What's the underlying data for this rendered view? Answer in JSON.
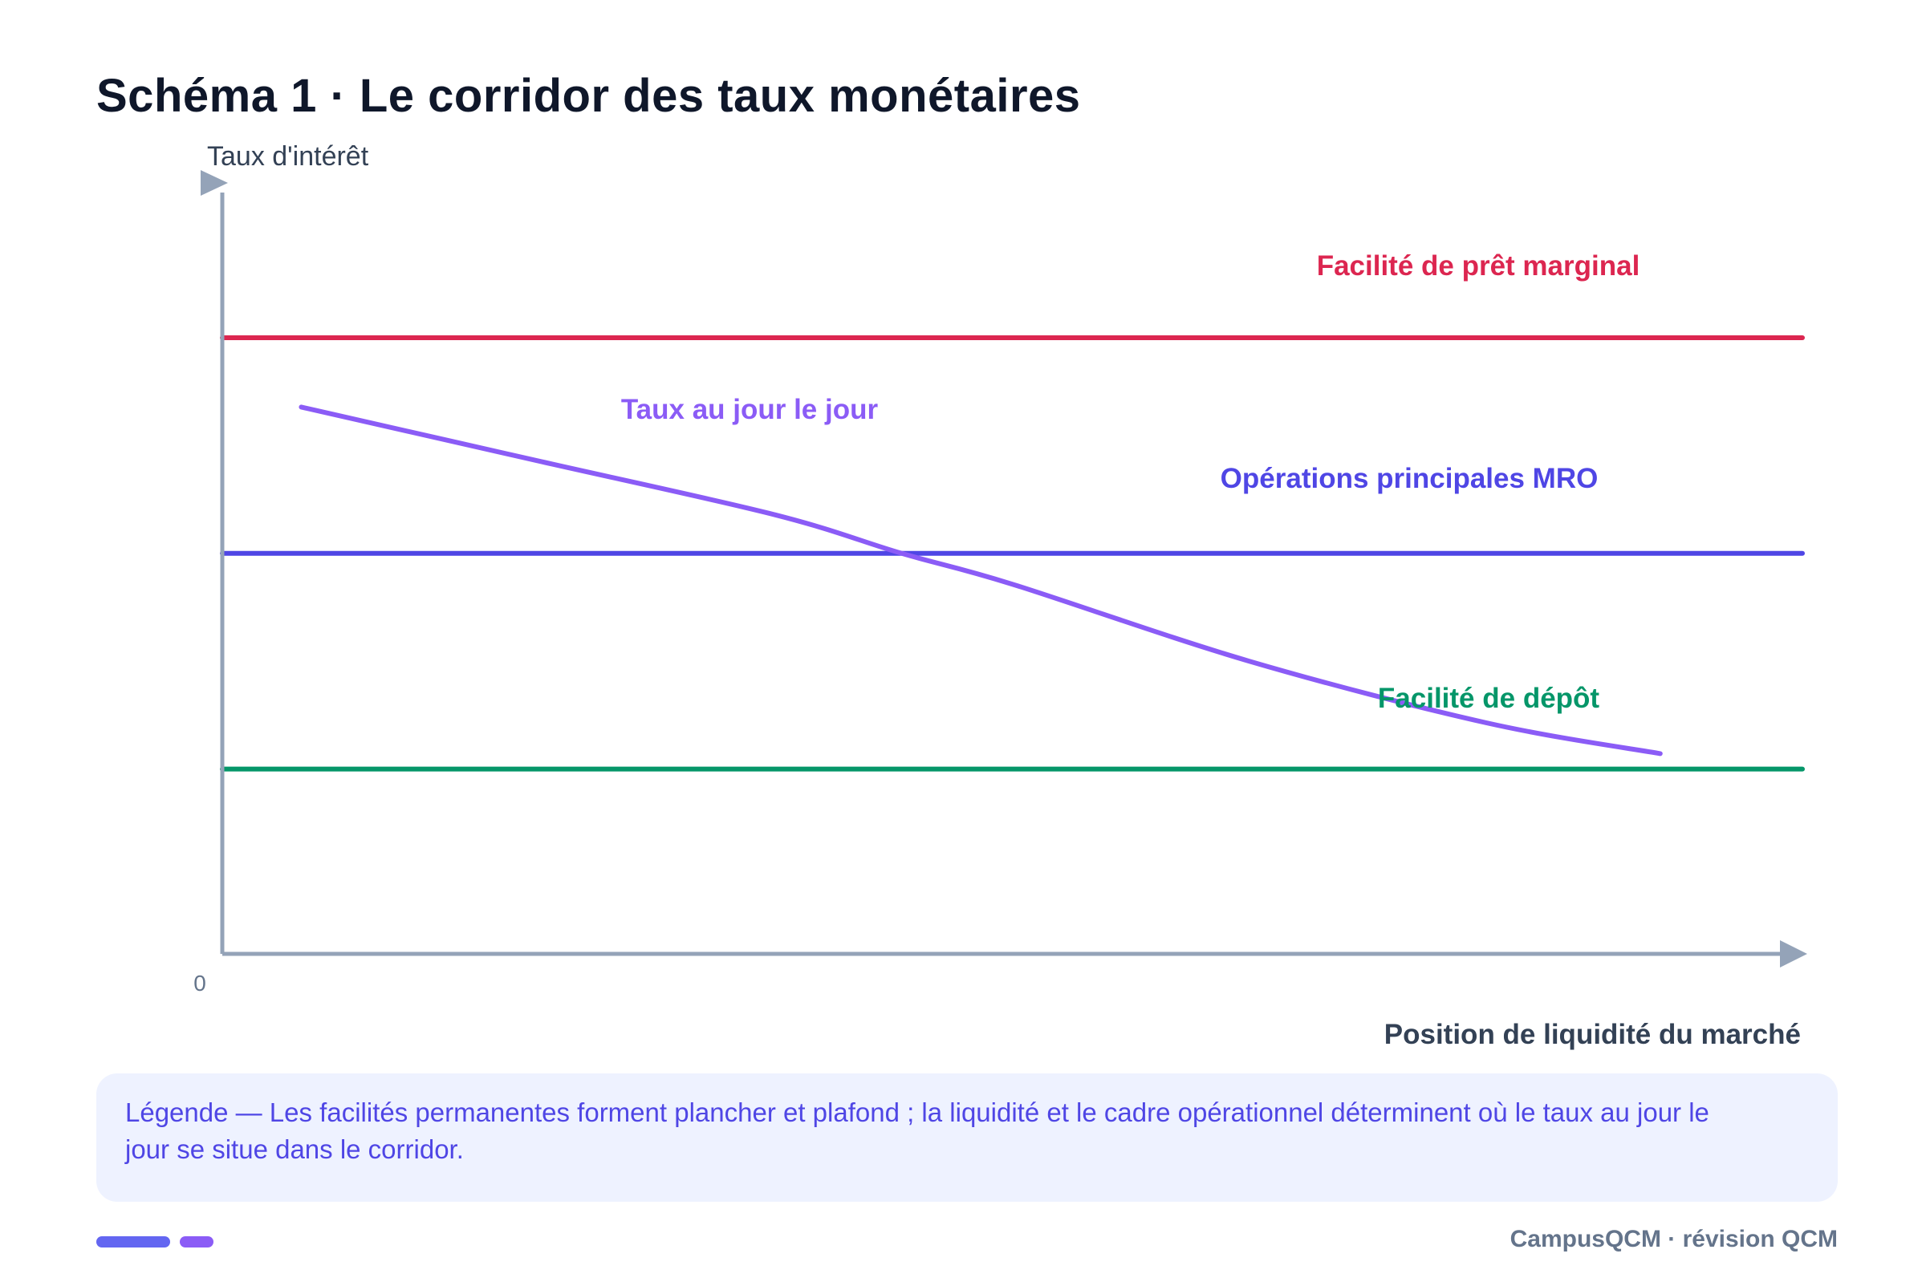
{
  "title": "Schéma 1 · Le corridor des taux monétaires",
  "colors": {
    "axis": "#94a3b8",
    "marginal_lending": "#dc2650",
    "mro": "#4f46e5",
    "deposit": "#059669",
    "overnight": "#8b5cf6",
    "title": "#0f172a",
    "legend_bg": "#eef2ff",
    "footer": "#64748b"
  },
  "chart_data": {
    "type": "line",
    "title": "Schéma 1 · Le corridor des taux monétaires",
    "ylabel": "Taux d'intérêt",
    "xlabel": "Position de liquidité du marché",
    "origin_label": "0",
    "x_ticks": [],
    "y_ticks": [],
    "xlim": [
      0,
      100
    ],
    "ylim": [
      0,
      100
    ],
    "grid": false,
    "series": [
      {
        "name": "Facilité de prêt marginal",
        "kind": "horizontal",
        "color": "#dc2650",
        "y": 80,
        "x": [
          0,
          100
        ]
      },
      {
        "name": "Opérations principales MRO",
        "kind": "horizontal",
        "color": "#4f46e5",
        "y": 52,
        "x": [
          0,
          100
        ]
      },
      {
        "name": "Facilité de dépôt",
        "kind": "horizontal",
        "color": "#059669",
        "y": 24,
        "x": [
          0,
          100
        ]
      },
      {
        "name": "Taux au jour le jour",
        "kind": "curve",
        "color": "#8b5cf6",
        "x": [
          5,
          20,
          35,
          43,
          50,
          65,
          80,
          91
        ],
        "y": [
          71,
          64,
          57,
          52,
          48,
          38,
          30,
          26
        ]
      }
    ]
  },
  "legend": {
    "text": "Légende — Les facilités permanentes forment plancher et plafond ; la liquidité et le cadre opérationnel déterminent où le taux au jour le jour se situe dans le corridor."
  },
  "footer": {
    "text": "CampusQCM · révision QCM"
  }
}
